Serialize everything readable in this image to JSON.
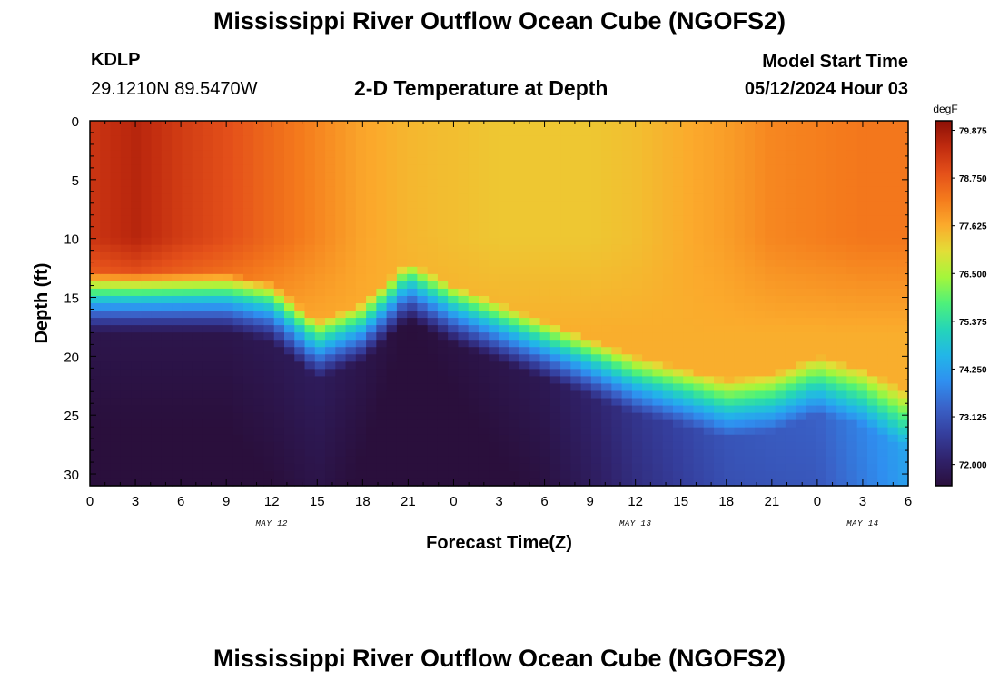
{
  "header": {
    "title": "Mississippi River Outflow Ocean Cube (NGOFS2)",
    "footer_title": "Mississippi River Outflow Ocean Cube (NGOFS2)",
    "station": "KDLP",
    "coords": "29.1210N  89.5470W",
    "plot_title": "2-D Temperature at Depth",
    "model_start_label": "Model Start Time",
    "model_start_value": "05/12/2024 Hour 03"
  },
  "chart_data": {
    "type": "heatmap",
    "title": "2-D Temperature at Depth",
    "xlabel": "Forecast Time(Z)",
    "ylabel": "Depth (ft)",
    "x_tick_labels": [
      "0",
      "3",
      "6",
      "9",
      "12",
      "15",
      "18",
      "21",
      "0",
      "3",
      "6",
      "9",
      "12",
      "15",
      "18",
      "21",
      "0",
      "3",
      "6"
    ],
    "x_hours": [
      0,
      3,
      6,
      9,
      12,
      15,
      18,
      21,
      24,
      27,
      30,
      33,
      36,
      39,
      42,
      45,
      48,
      51,
      54
    ],
    "date_labels": [
      {
        "text": "MAY 12",
        "hour": 12
      },
      {
        "text": "MAY 13",
        "hour": 36
      },
      {
        "text": "MAY 14",
        "hour": 51
      }
    ],
    "xlim": [
      0,
      54
    ],
    "ylim": [
      0,
      31
    ],
    "y_ticks": [
      0,
      5,
      10,
      15,
      20,
      25,
      30
    ],
    "colorbar": {
      "unit": "degF",
      "min": 71.5,
      "max": 80.1,
      "labels": [
        "79.875",
        "78.750",
        "77.625",
        "76.500",
        "75.375",
        "74.250",
        "73.125",
        "72.000"
      ],
      "label_values": [
        79.875,
        78.75,
        77.625,
        76.5,
        75.375,
        74.25,
        73.125,
        72.0
      ],
      "stops": [
        "#2a0f3c",
        "#30226b",
        "#353f9e",
        "#3a62c8",
        "#2f8ff0",
        "#22b6e8",
        "#25d5b8",
        "#4ef17a",
        "#a4f63b",
        "#e3de37",
        "#fbaa2c",
        "#f47a1c",
        "#e4501a",
        "#c02b0f",
        "#8c1006"
      ]
    },
    "surface_temp_series": {
      "hours": [
        0,
        3,
        6,
        9,
        12,
        15,
        18,
        21,
        24,
        27,
        30,
        33,
        36,
        39,
        42,
        45,
        48,
        51,
        54
      ],
      "values": [
        79.3,
        79.6,
        79.2,
        78.9,
        78.5,
        78.1,
        77.7,
        77.5,
        77.4,
        77.3,
        77.3,
        77.3,
        77.4,
        77.6,
        77.8,
        78.1,
        78.2,
        78.3,
        78.3
      ]
    },
    "thermocline_depth_series": {
      "hours": [
        0,
        3,
        6,
        9,
        12,
        15,
        18,
        21,
        24,
        27,
        30,
        33,
        36,
        39,
        42,
        45,
        48,
        51,
        54
      ],
      "values": [
        15.5,
        15.5,
        15.5,
        15.5,
        16.3,
        19.5,
        18.0,
        14.5,
        16.5,
        18.0,
        19.5,
        21.0,
        22.5,
        23.5,
        24.5,
        24.0,
        22.5,
        23.5,
        25.5
      ]
    },
    "bottom_temp_series": {
      "hours": [
        0,
        3,
        6,
        9,
        12,
        15,
        18,
        21,
        24,
        27,
        30,
        33,
        36,
        39,
        42,
        45,
        48,
        51,
        54
      ],
      "values": [
        71.7,
        71.7,
        71.7,
        71.7,
        71.8,
        71.9,
        71.7,
        71.5,
        71.6,
        71.7,
        71.8,
        72.1,
        72.5,
        72.8,
        73.1,
        73.2,
        73.3,
        73.8,
        74.3
      ]
    }
  }
}
